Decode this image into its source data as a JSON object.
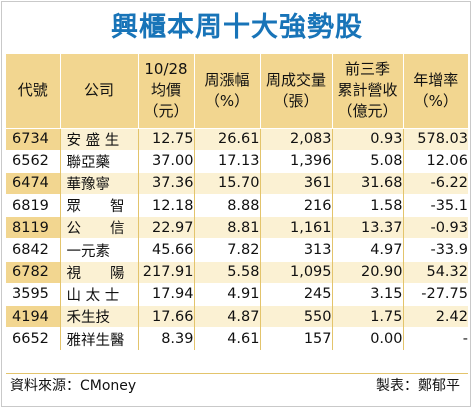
{
  "title": "興櫃本周十大強勢股",
  "headers": [
    [
      "代號"
    ],
    [
      "公司"
    ],
    [
      "10/28",
      "均價",
      "（元）"
    ],
    [
      "周漲幅",
      "（%）"
    ],
    [
      "周成交量",
      "（張）"
    ],
    [
      "前三季",
      "累計營收",
      "（億元）"
    ],
    [
      "年增率",
      "（%）"
    ]
  ],
  "rows": [
    [
      "6734",
      "安 盛 生",
      "12.75",
      "26.61",
      "2,083",
      "0.93",
      "578.03"
    ],
    [
      "6562",
      "聯亞藥",
      "37.00",
      "17.13",
      "1,396",
      "5.08",
      "12.06"
    ],
    [
      "6474",
      "華豫寧",
      "37.36",
      "15.70",
      "361",
      "31.68",
      "-6.22"
    ],
    [
      "6819",
      "眾　　智",
      "12.18",
      "8.88",
      "216",
      "1.58",
      "-35.1"
    ],
    [
      "8119",
      "公　　信",
      "22.97",
      "8.81",
      "1,161",
      "13.37",
      "-0.93"
    ],
    [
      "6842",
      "一元素",
      "45.66",
      "7.82",
      "313",
      "4.97",
      "-33.9"
    ],
    [
      "6782",
      "視　　陽",
      "217.91",
      "5.58",
      "1,095",
      "20.90",
      "54.32"
    ],
    [
      "3595",
      "山 太 士",
      "17.94",
      "4.91",
      "245",
      "3.15",
      "-27.75"
    ],
    [
      "4194",
      "禾生技",
      "17.66",
      "4.87",
      "550",
      "1.75",
      "2.42"
    ],
    [
      "6652",
      "雅祥生醫",
      "8.39",
      "4.61",
      "157",
      "0.00",
      "-"
    ]
  ],
  "footer": {
    "source": "資料來源：CMoney",
    "maker": "製表：鄭郁平"
  },
  "colors": {
    "title": "#1874b8",
    "header_bg": "#f2d690",
    "stripe_bg": "#fbf1d3",
    "grid_line": "#e3c46c"
  }
}
